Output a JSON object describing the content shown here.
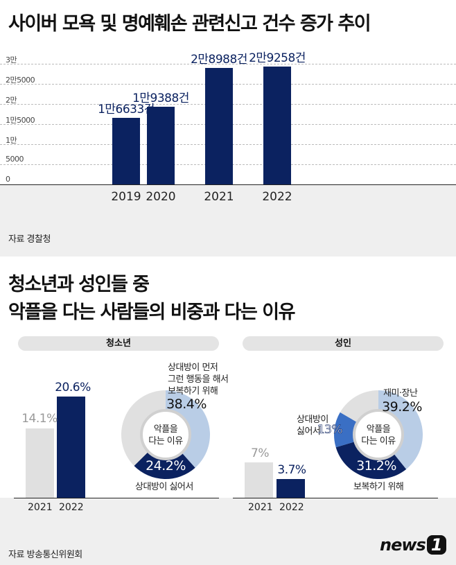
{
  "title1": "사이버 모욕 및 명예훼손 관련신고 건수 증가 추이",
  "chart_data": [
    {
      "type": "bar",
      "categories": [
        "2019",
        "2020",
        "2021",
        "2022"
      ],
      "values": [
        16633,
        19388,
        28988,
        29258
      ],
      "data_labels": [
        "1만6633건",
        "1만9388건",
        "2만8988건",
        "2만9258건"
      ],
      "ytick_labels": [
        "0",
        "5000",
        "1만",
        "1만5000",
        "2만",
        "2만5000",
        "3만"
      ],
      "ylim": [
        0,
        30000
      ],
      "grid": true,
      "color": "#0b2260"
    },
    {
      "type": "bar",
      "panel": "청소년",
      "categories": [
        "2021",
        "2022"
      ],
      "values": [
        14.1,
        20.6
      ],
      "data_labels": [
        "14.1%",
        "20.6%"
      ],
      "colors": [
        "#e0e0e0",
        "#0b2260"
      ]
    },
    {
      "type": "pie",
      "panel": "청소년",
      "center_label": "악플을 다는 이유",
      "slices": [
        {
          "label": "상대방이 먼저 그런 행동을 해서 보복하기 위해",
          "value": 38.4,
          "color": "#b9cde6"
        },
        {
          "label": "상대방이 싫어서",
          "value": 24.2,
          "color": "#0b2260"
        }
      ],
      "rest_color": "#e0e0e0"
    },
    {
      "type": "bar",
      "panel": "성인",
      "categories": [
        "2021",
        "2022"
      ],
      "values": [
        7,
        3.7
      ],
      "data_labels": [
        "7%",
        "3.7%"
      ],
      "colors": [
        "#e0e0e0",
        "#0b2260"
      ]
    },
    {
      "type": "pie",
      "panel": "성인",
      "center_label": "악플을 다는 이유",
      "slices": [
        {
          "label": "재미·장난",
          "value": 39.2,
          "color": "#b9cde6"
        },
        {
          "label": "보복하기 위해",
          "value": 31.2,
          "color": "#0b2260"
        },
        {
          "label": "상대방이 싫어서",
          "value": 13,
          "color": "#3a6fc4"
        }
      ],
      "rest_color": "#e0e0e0"
    }
  ],
  "source1": "자료 경찰청",
  "title2a": "청소년과 성인들 중",
  "title2b": "악플을 다는 사람들의 비중과 다는 이유",
  "panels": {
    "youth": "청소년",
    "adult": "성인"
  },
  "youth": {
    "bar2021": "14.1%",
    "bar2022": "20.6%",
    "year1": "2021",
    "year2": "2022",
    "center1": "악플을",
    "center2": "다는 이유",
    "s1l1": "상대방이 먼저",
    "s1l2": "그런 행동을 해서",
    "s1l3": "보복하기 위해",
    "s1pct": "38.4%",
    "s2pct": "24.2%",
    "s2label": "상대방이 싫어서"
  },
  "adult": {
    "bar2021": "7%",
    "bar2022": "3.7%",
    "year1": "2021",
    "year2": "2022",
    "center1": "악플을",
    "center2": "다는 이유",
    "s1label": "재미·장난",
    "s1pct": "39.2%",
    "s2pct": "31.2%",
    "s2label": "보복하기 위해",
    "s3l1": "상대방이",
    "s3l2": "싫어서",
    "s3pct": "13%"
  },
  "source2": "자료 방송통신위원회",
  "logo": "news1"
}
